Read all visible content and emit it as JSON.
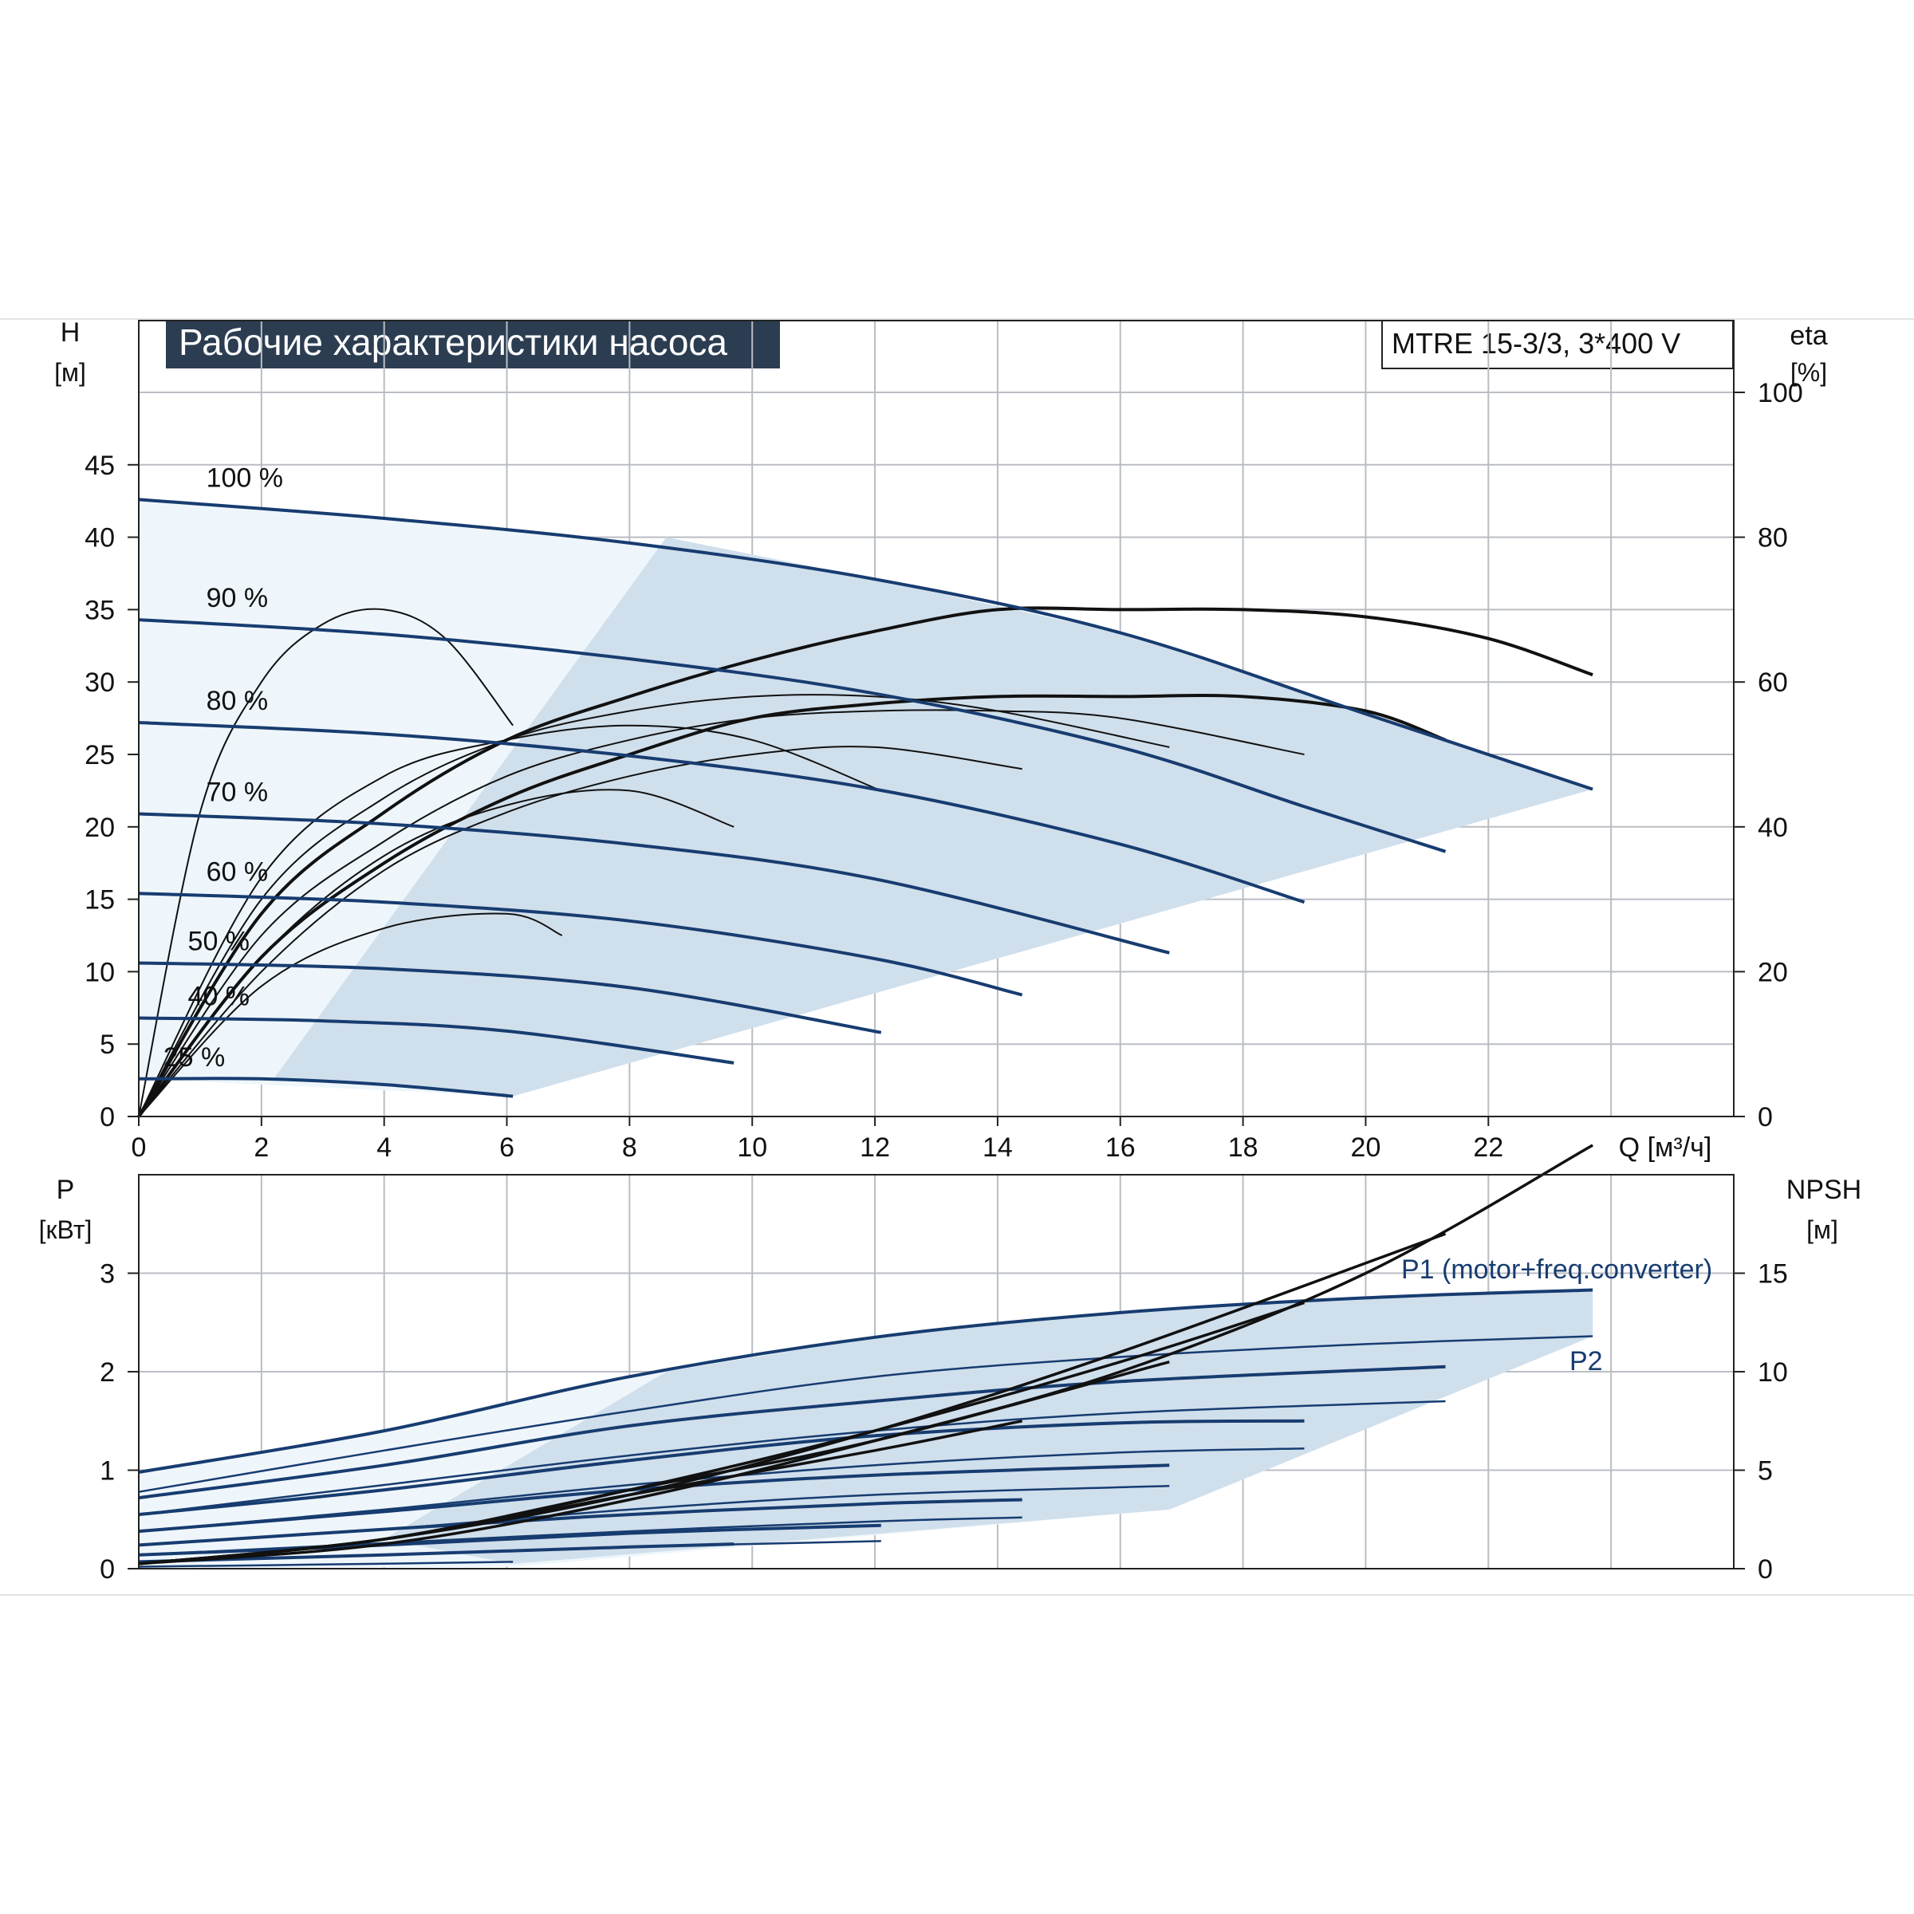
{
  "title": "Рабочие характеристики насоса",
  "model": "MTRE 15-3/3, 3*400 V",
  "colors": {
    "head_curve": "#173c70",
    "efficiency_curve": "#111111",
    "range_fill": "#d0dfec",
    "range_fill_light": "#eef6fb",
    "title_bg": "#2c3d52",
    "grid": "#b9bdc3"
  },
  "top_chart": {
    "ylabel_left": "H",
    "ylabel_left_unit": "[м]",
    "ylabel_right": "eta",
    "ylabel_right_unit": "[%]",
    "xlabel": "Q [м³/ч]"
  },
  "bottom_chart": {
    "ylabel_left": "P",
    "ylabel_left_unit": "[кВт]",
    "ylabel_right": "NPSH",
    "ylabel_right_unit": "[м]",
    "series_label_p1": "P1 (motor+freq.converter)",
    "series_label_p2": "P2"
  },
  "chart_data": [
    {
      "type": "line",
      "x_ticks": [
        "0",
        "2",
        "4",
        "6",
        "8",
        "10",
        "12",
        "14",
        "16",
        "18",
        "20",
        "22"
      ],
      "y_left_ticks": [
        "0",
        "5",
        "10",
        "15",
        "20",
        "25",
        "30",
        "35",
        "40",
        "45"
      ],
      "y_right_ticks": [
        "0",
        "20",
        "40",
        "60",
        "80",
        "100"
      ],
      "xlim": [
        0,
        26
      ],
      "ylim": [
        0,
        50
      ],
      "y_right_lim": [
        0,
        100
      ],
      "speed_labels": [
        "100 %",
        "90 %",
        "80 %",
        "70 %",
        "60 %",
        "50 %",
        "40 %",
        "25 %"
      ],
      "head_series": [
        {
          "name": "100 %",
          "x": [
            0,
            4,
            8,
            12,
            16,
            20,
            23.7
          ],
          "y": [
            42.6,
            41.3,
            39.6,
            37.1,
            33.4,
            27.8,
            22.6
          ]
        },
        {
          "name": "90 %",
          "x": [
            0,
            4,
            8,
            12,
            16,
            19,
            21.3
          ],
          "y": [
            34.3,
            33.3,
            31.6,
            29.2,
            25.5,
            21.4,
            18.3
          ]
        },
        {
          "name": "80 %",
          "x": [
            0,
            4,
            8,
            12,
            16,
            19.0
          ],
          "y": [
            27.2,
            26.4,
            24.9,
            22.6,
            18.8,
            14.8
          ]
        },
        {
          "name": "70 %",
          "x": [
            0,
            4,
            8,
            12,
            16.8
          ],
          "y": [
            20.9,
            20.2,
            18.8,
            16.4,
            11.3
          ]
        },
        {
          "name": "60 %",
          "x": [
            0,
            4,
            8,
            12,
            14.4
          ],
          "y": [
            15.4,
            14.8,
            13.5,
            10.9,
            8.4
          ]
        },
        {
          "name": "50 %",
          "x": [
            0,
            4,
            8,
            12.1
          ],
          "y": [
            10.6,
            10.2,
            8.9,
            5.8
          ]
        },
        {
          "name": "40 %",
          "x": [
            0,
            3,
            6,
            9.7
          ],
          "y": [
            6.8,
            6.6,
            5.9,
            3.7
          ]
        },
        {
          "name": "25 %",
          "x": [
            0,
            2,
            4,
            6.1
          ],
          "y": [
            2.6,
            2.6,
            2.2,
            1.4
          ]
        }
      ],
      "efficiency_series": [
        {
          "x": [
            0,
            2,
            4,
            6,
            8,
            10,
            12,
            14,
            16,
            18,
            20,
            22,
            23.7
          ],
          "y": [
            0,
            28,
            42,
            52,
            58,
            63,
            67,
            70,
            70,
            70,
            69,
            66,
            61
          ]
        },
        {
          "x": [
            0,
            2,
            4,
            6,
            8,
            10,
            12,
            14,
            16,
            18,
            20,
            21.3
          ],
          "y": [
            0,
            22,
            35,
            44,
            50,
            55,
            57,
            58,
            58,
            58,
            56,
            52
          ]
        },
        {
          "x": [
            0,
            2,
            4,
            6,
            8,
            10,
            12,
            14,
            16,
            19
          ],
          "y": [
            0,
            25,
            38,
            47,
            52,
            55,
            56,
            56,
            55,
            50
          ]
        },
        {
          "x": [
            0,
            2,
            4,
            6,
            8,
            10,
            12,
            14,
            16.8
          ],
          "y": [
            0,
            30,
            44,
            52,
            56,
            58,
            58,
            56,
            51
          ]
        },
        {
          "x": [
            0,
            2,
            4,
            6,
            8,
            10,
            12,
            14.4
          ],
          "y": [
            0,
            20,
            34,
            42,
            47,
            50,
            51,
            48
          ]
        },
        {
          "x": [
            0,
            2,
            4,
            6,
            8,
            10,
            12.1
          ],
          "y": [
            0,
            33,
            47,
            52,
            54,
            52,
            45
          ]
        },
        {
          "x": [
            0,
            2,
            4,
            6,
            8,
            9.7
          ],
          "y": [
            0,
            22,
            36,
            43,
            45,
            40
          ]
        },
        {
          "x": [
            0,
            1,
            2,
            3,
            4,
            5,
            6.1
          ],
          "y": [
            0,
            42,
            60,
            68,
            70,
            66,
            54
          ]
        },
        {
          "x": [
            0,
            2,
            4,
            6,
            6.9
          ],
          "y": [
            0,
            18,
            26,
            28,
            25
          ]
        }
      ]
    },
    {
      "type": "line",
      "x_ticks": [
        "0",
        "2",
        "4",
        "6",
        "8",
        "10",
        "12",
        "14",
        "16",
        "18",
        "20",
        "22"
      ],
      "y_left_ticks": [
        "0",
        "1",
        "2",
        "3"
      ],
      "y_right_ticks": [
        "0",
        "5",
        "10",
        "15"
      ],
      "xlim": [
        0,
        26
      ],
      "ylim": [
        0,
        4
      ],
      "y_right_lim": [
        0,
        20
      ],
      "power_series": [
        {
          "name": "P1 (motor+freq.converter)",
          "x": [
            0,
            4,
            8,
            12,
            16,
            20,
            23.7
          ],
          "y": [
            0.98,
            1.4,
            1.95,
            2.35,
            2.6,
            2.75,
            2.83
          ]
        },
        {
          "name": "P2",
          "x": [
            0,
            4,
            8,
            12,
            16,
            20,
            23.7
          ],
          "y": [
            0.78,
            1.2,
            1.6,
            1.95,
            2.15,
            2.28,
            2.36
          ]
        },
        {
          "x": [
            0,
            4,
            8,
            12,
            16,
            21.3
          ],
          "y": [
            0.72,
            1.05,
            1.45,
            1.7,
            1.9,
            2.05
          ]
        },
        {
          "x": [
            0,
            4,
            8,
            12,
            16,
            21.3
          ],
          "y": [
            0.55,
            0.85,
            1.15,
            1.4,
            1.58,
            1.7
          ]
        },
        {
          "x": [
            0,
            4,
            8,
            12,
            16,
            19.0
          ],
          "y": [
            0.55,
            0.8,
            1.1,
            1.35,
            1.48,
            1.5
          ]
        },
        {
          "x": [
            0,
            4,
            8,
            12,
            16,
            19.0
          ],
          "y": [
            0.38,
            0.6,
            0.85,
            1.05,
            1.18,
            1.22
          ]
        },
        {
          "x": [
            0,
            4,
            8,
            12,
            16.8
          ],
          "y": [
            0.38,
            0.58,
            0.8,
            0.95,
            1.05
          ]
        },
        {
          "x": [
            0,
            4,
            8,
            12,
            16.8
          ],
          "y": [
            0.24,
            0.4,
            0.6,
            0.75,
            0.84
          ]
        },
        {
          "x": [
            0,
            4,
            8,
            12,
            14.4
          ],
          "y": [
            0.24,
            0.4,
            0.55,
            0.66,
            0.7
          ]
        },
        {
          "x": [
            0,
            4,
            8,
            12,
            14.4
          ],
          "y": [
            0.14,
            0.26,
            0.38,
            0.48,
            0.52
          ]
        },
        {
          "x": [
            0,
            4,
            8,
            12.1
          ],
          "y": [
            0.14,
            0.24,
            0.36,
            0.44
          ]
        },
        {
          "x": [
            0,
            4,
            8,
            12.1
          ],
          "y": [
            0.07,
            0.14,
            0.22,
            0.28
          ]
        },
        {
          "x": [
            0,
            4,
            8,
            9.7
          ],
          "y": [
            0.07,
            0.14,
            0.22,
            0.25
          ]
        },
        {
          "x": [
            0,
            4,
            6.1
          ],
          "y": [
            0.02,
            0.05,
            0.07
          ]
        }
      ],
      "npsh_series": [
        {
          "x": [
            0,
            4,
            8,
            12,
            16,
            20,
            23.7
          ],
          "y": [
            0.05,
            0.25,
            0.7,
            1.3,
            2.0,
            3.0,
            4.3
          ]
        },
        {
          "x": [
            0,
            4,
            8,
            12,
            16,
            21.3
          ],
          "y": [
            0.05,
            0.3,
            0.75,
            1.4,
            2.2,
            3.4
          ]
        },
        {
          "x": [
            0,
            4,
            8,
            12,
            16,
            19.0
          ],
          "y": [
            0.05,
            0.3,
            0.8,
            1.4,
            2.1,
            2.7
          ]
        },
        {
          "x": [
            0,
            4,
            8,
            12,
            16.8
          ],
          "y": [
            0.05,
            0.3,
            0.8,
            1.3,
            2.1
          ]
        },
        {
          "x": [
            0,
            4,
            8,
            12,
            14.4
          ],
          "y": [
            0.05,
            0.3,
            0.75,
            1.2,
            1.5
          ]
        }
      ]
    }
  ]
}
